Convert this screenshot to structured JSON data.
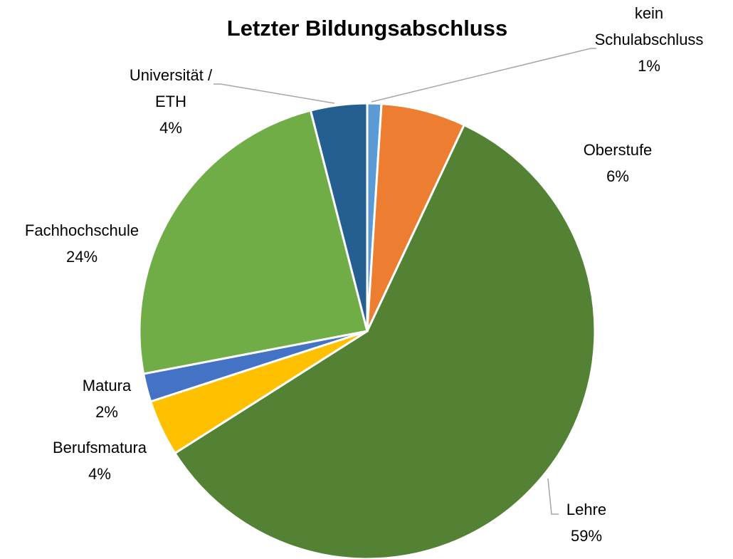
{
  "chart_data": {
    "type": "pie",
    "title": "Letzter Bildungsabschluss",
    "categories": [
      "kein Schulabschluss",
      "Oberstufe",
      "Lehre",
      "Berufsmatura",
      "Matura",
      "Fachhochschule",
      "Universität / ETH"
    ],
    "values": [
      1,
      6,
      59,
      4,
      2,
      24,
      4
    ],
    "value_labels": [
      "1%",
      "6%",
      "59%",
      "4%",
      "2%",
      "24%",
      "4%"
    ],
    "colors": [
      "#5b9bd5",
      "#ed7d31",
      "#548235",
      "#ffc000",
      "#4472c4",
      "#70ad47",
      "#255e91"
    ]
  }
}
